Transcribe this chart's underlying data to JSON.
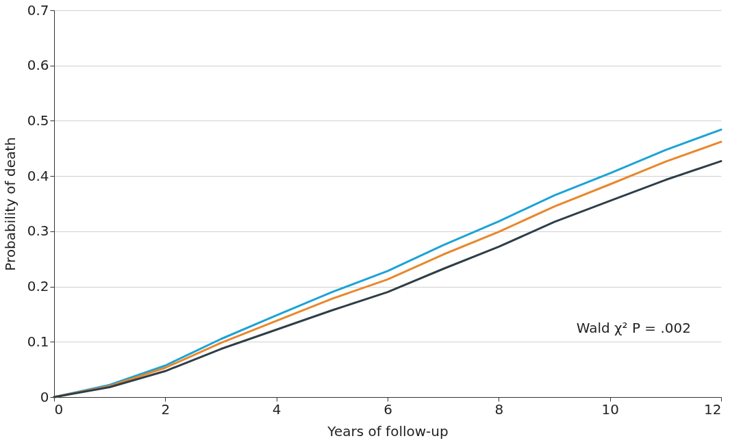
{
  "chart_data": {
    "type": "line",
    "xlabel": "Years of follow-up",
    "ylabel": "Probability of death",
    "x": [
      0,
      1,
      2,
      3,
      4,
      5,
      6,
      7,
      8,
      9,
      10,
      11,
      12
    ],
    "series": [
      {
        "color": "#1ba3d6",
        "values": [
          0,
          0.022,
          0.057,
          0.105,
          0.148,
          0.19,
          0.228,
          0.275,
          0.318,
          0.365,
          0.405,
          0.447,
          0.484
        ]
      },
      {
        "color": "#e8872b",
        "values": [
          0,
          0.02,
          0.053,
          0.098,
          0.138,
          0.178,
          0.213,
          0.258,
          0.299,
          0.345,
          0.385,
          0.426,
          0.462
        ]
      },
      {
        "color": "#2e3e48",
        "values": [
          0,
          0.018,
          0.047,
          0.087,
          0.122,
          0.157,
          0.19,
          0.232,
          0.272,
          0.317,
          0.355,
          0.393,
          0.427
        ]
      }
    ],
    "xlim": [
      0,
      12
    ],
    "xticks": [
      0,
      2,
      4,
      6,
      8,
      10,
      12
    ],
    "ylim": [
      0,
      0.7
    ],
    "yticks": [
      0,
      0.1,
      0.2,
      0.3,
      0.4,
      0.5,
      0.6,
      0.7
    ],
    "grid": "y",
    "legend": false,
    "marker": "none",
    "line_style": "solid",
    "annotations": [
      "Wald χ² P = .002"
    ]
  }
}
